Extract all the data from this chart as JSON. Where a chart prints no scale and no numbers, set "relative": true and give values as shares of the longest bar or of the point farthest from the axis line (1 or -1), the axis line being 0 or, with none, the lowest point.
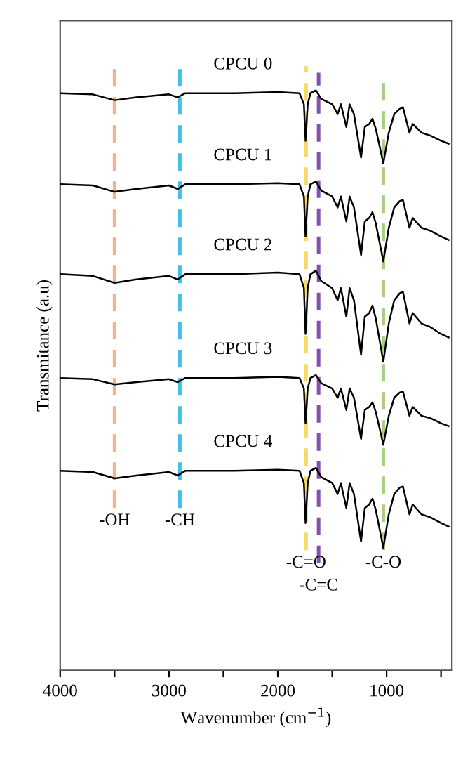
{
  "chart_data": {
    "type": "line",
    "relative": true,
    "xlabel": "Wavenumber (cm$^{−1}$)",
    "ylabel": "Transmitance (a.u)",
    "x": [
      4000,
      3700,
      3500,
      3300,
      3000,
      2920,
      2850,
      2400,
      2000,
      1800,
      1760,
      1745,
      1725,
      1700,
      1650,
      1600,
      1500,
      1450,
      1420,
      1370,
      1340,
      1300,
      1235,
      1200,
      1160,
      1130,
      1100,
      1030,
      980,
      930,
      880,
      850,
      790,
      760,
      680,
      600,
      500,
      430
    ],
    "xlim": [
      4000,
      400
    ],
    "xticks": [
      4000,
      {
        "value": 3500,
        "label": null
      },
      3000,
      {
        "value": 2500,
        "label": null
      },
      2000,
      {
        "value": 1500,
        "label": null
      },
      1000,
      {
        "value": 500,
        "label": null
      }
    ],
    "series": [
      {
        "name": "CPCU 0",
        "color": "#000000",
        "values": [
          0.995,
          0.993,
          0.983,
          0.988,
          0.993,
          0.988,
          0.995,
          0.995,
          0.997,
          0.995,
          0.976,
          0.913,
          0.976,
          0.995,
          1.0,
          0.985,
          0.976,
          0.959,
          0.976,
          0.937,
          0.976,
          0.959,
          0.884,
          0.937,
          0.942,
          0.951,
          0.934,
          0.874,
          0.927,
          0.959,
          0.968,
          0.971,
          0.927,
          0.942,
          0.927,
          0.922,
          0.913,
          0.908
        ]
      },
      {
        "name": "CPCU 1",
        "color": "#000000",
        "values": [
          0.838,
          0.836,
          0.825,
          0.83,
          0.836,
          0.83,
          0.838,
          0.838,
          0.84,
          0.838,
          0.817,
          0.748,
          0.817,
          0.838,
          0.843,
          0.827,
          0.817,
          0.798,
          0.817,
          0.774,
          0.817,
          0.798,
          0.716,
          0.774,
          0.78,
          0.79,
          0.771,
          0.705,
          0.763,
          0.798,
          0.809,
          0.811,
          0.763,
          0.78,
          0.763,
          0.758,
          0.748,
          0.742
        ]
      },
      {
        "name": "CPCU 2",
        "color": "#000000",
        "values": [
          0.683,
          0.68,
          0.668,
          0.674,
          0.68,
          0.674,
          0.683,
          0.683,
          0.686,
          0.683,
          0.659,
          0.58,
          0.659,
          0.683,
          0.689,
          0.671,
          0.659,
          0.638,
          0.659,
          0.61,
          0.659,
          0.638,
          0.544,
          0.61,
          0.616,
          0.629,
          0.607,
          0.532,
          0.598,
          0.638,
          0.65,
          0.653,
          0.598,
          0.616,
          0.598,
          0.592,
          0.58,
          0.574
        ]
      },
      {
        "name": "CPCU 3",
        "color": "#000000",
        "values": [
          0.504,
          0.502,
          0.493,
          0.497,
          0.502,
          0.497,
          0.504,
          0.504,
          0.506,
          0.504,
          0.486,
          0.426,
          0.486,
          0.504,
          0.509,
          0.495,
          0.486,
          0.47,
          0.486,
          0.449,
          0.486,
          0.47,
          0.399,
          0.449,
          0.454,
          0.462,
          0.446,
          0.389,
          0.439,
          0.47,
          0.479,
          0.481,
          0.439,
          0.454,
          0.439,
          0.435,
          0.426,
          0.421
        ]
      },
      {
        "name": "CPCU 4",
        "color": "#000000",
        "values": [
          0.344,
          0.342,
          0.331,
          0.336,
          0.342,
          0.336,
          0.344,
          0.344,
          0.346,
          0.344,
          0.323,
          0.254,
          0.323,
          0.344,
          0.349,
          0.333,
          0.323,
          0.304,
          0.323,
          0.28,
          0.323,
          0.304,
          0.222,
          0.28,
          0.286,
          0.296,
          0.277,
          0.211,
          0.269,
          0.304,
          0.315,
          0.317,
          0.269,
          0.286,
          0.269,
          0.264,
          0.254,
          0.248
        ]
      }
    ],
    "ref_lines": [
      {
        "axis": "x",
        "value": 3500,
        "label": "-OH",
        "color": "#f0a57a",
        "line_style": "dashed"
      },
      {
        "axis": "x",
        "value": 2900,
        "label": "-CH",
        "color": "#1fb4e6",
        "line_style": "dashed"
      },
      {
        "axis": "x",
        "value": 1740,
        "label": "-C=O",
        "color": "#f5d44a",
        "line_style": "dashed"
      },
      {
        "axis": "x",
        "value": 1625,
        "label": "-C=C",
        "color": "#7030a0",
        "line_style": "dashed"
      },
      {
        "axis": "x",
        "value": 1030,
        "label": "-C-O",
        "color": "#9bc46a",
        "line_style": "dashed"
      }
    ],
    "grid": false
  }
}
